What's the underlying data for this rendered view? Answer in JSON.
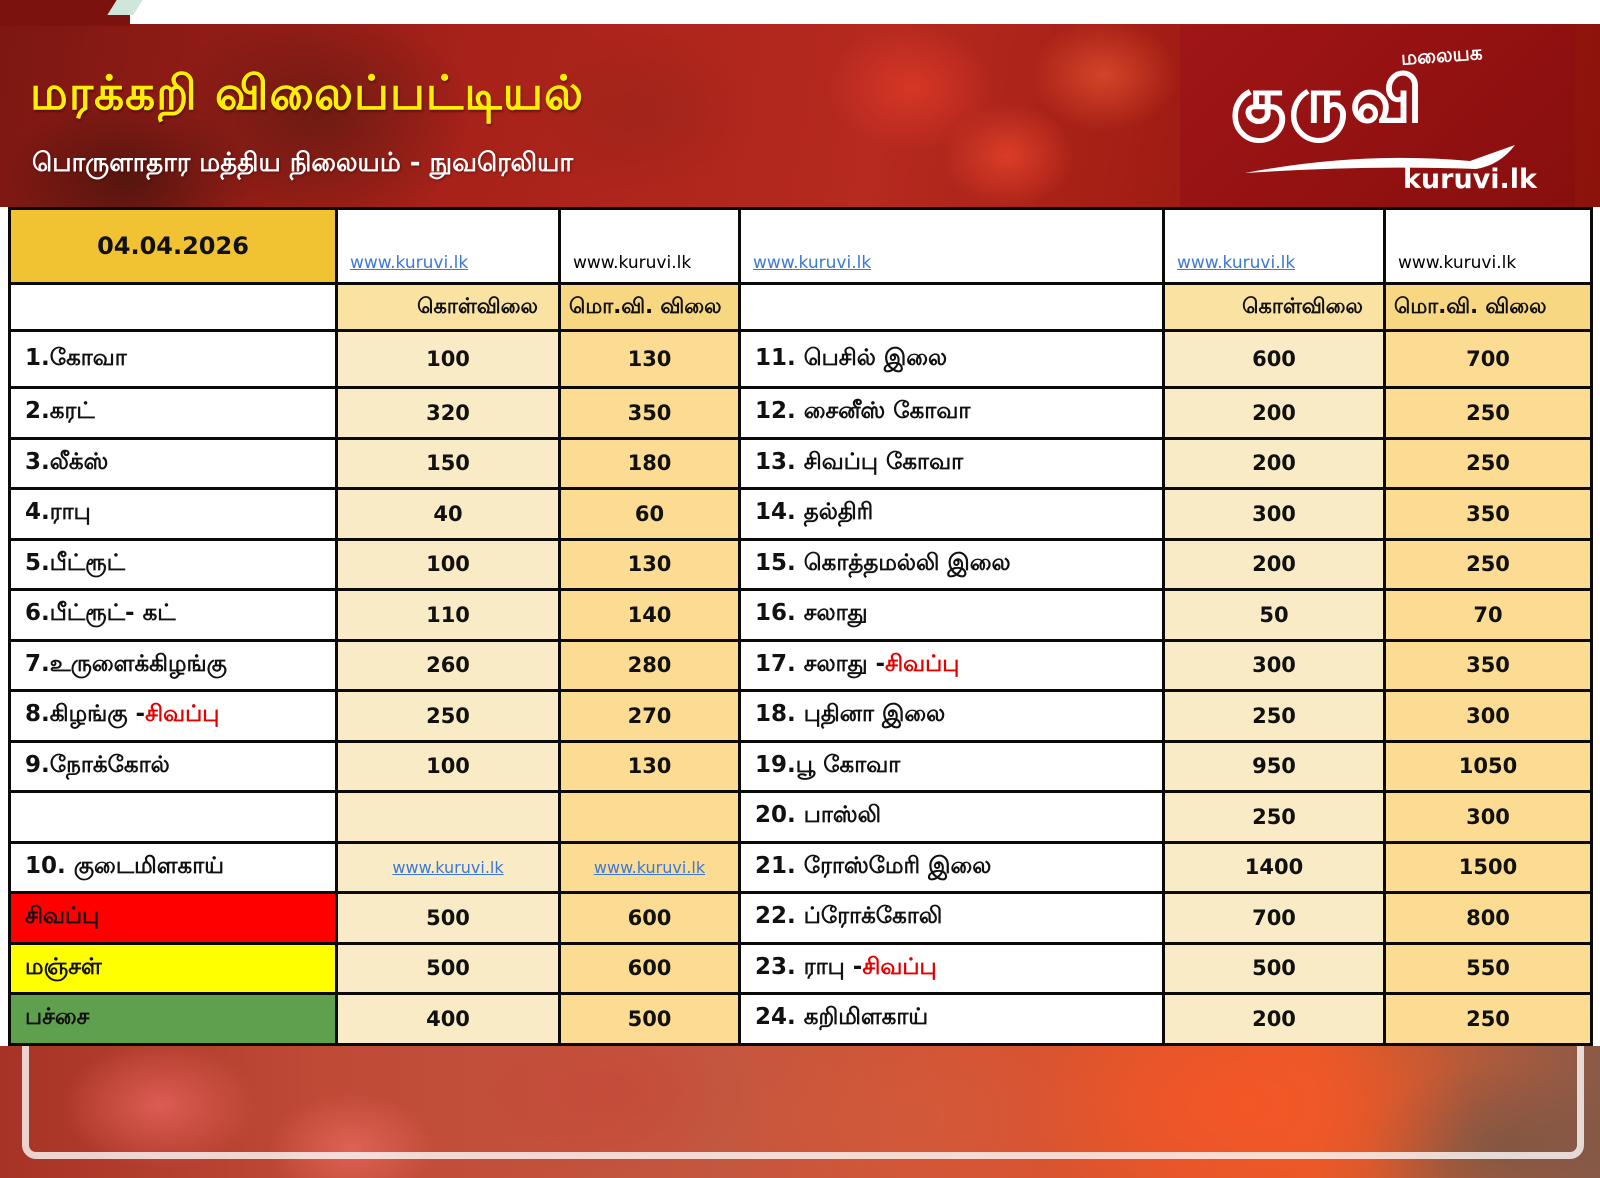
{
  "header": {
    "title": "மரக்கறி விலைப்பட்டியல்",
    "subtitle": "பொருளாதார மத்திய நிலையம் - நுவரெலியா",
    "logo": {
      "tagline": "மலையக",
      "brand": "குருவி",
      "site": "kuruvi.lk"
    }
  },
  "table": {
    "date": "04.04.2026",
    "link_label": "www.kuruvi.lk",
    "columns": {
      "buy": "கொள்விலை",
      "wholesale": "மொ.வி. விலை"
    },
    "rows": [
      {
        "left": {
          "name": "1.கோவா",
          "buy": "100",
          "ws": "130"
        },
        "right": {
          "name": "11. பெசில் இலை",
          "buy": "600",
          "ws": "700"
        }
      },
      {
        "left": {
          "name": "2.கரட்",
          "buy": "320",
          "ws": "350"
        },
        "right": {
          "name": "12. சைனீஸ் கோவா",
          "buy": "200",
          "ws": "250"
        }
      },
      {
        "left": {
          "name": "3.லீக்ஸ்",
          "buy": "150",
          "ws": "180"
        },
        "right": {
          "name": "13. சிவப்பு கோவா",
          "buy": "200",
          "ws": "250"
        }
      },
      {
        "left": {
          "name": "4.ராபு",
          "buy": "40",
          "ws": "60"
        },
        "right": {
          "name": "14. தல்திரி",
          "buy": "300",
          "ws": "350"
        }
      },
      {
        "left": {
          "name": "5.பீட்ரூட்",
          "buy": "100",
          "ws": "130"
        },
        "right": {
          "name": "15. கொத்தமல்லி இலை",
          "buy": "200",
          "ws": "250"
        }
      },
      {
        "left": {
          "name": "6.பீட்ரூட்- கட்",
          "buy": "110",
          "ws": "140"
        },
        "right": {
          "name": "16. சலாது",
          "buy": "50",
          "ws": "70"
        }
      },
      {
        "left": {
          "name": "7.உருளைக்கிழங்கு",
          "buy": "260",
          "ws": "280"
        },
        "right": {
          "name": "17. சலாது - ",
          "red": "சிவப்பு",
          "buy": "300",
          "ws": "350"
        }
      },
      {
        "left": {
          "name": "8.கிழங்கு - ",
          "red": "சிவப்பு",
          "buy": "250",
          "ws": "270"
        },
        "right": {
          "name": "18. புதினா இலை",
          "buy": "250",
          "ws": "300"
        }
      },
      {
        "left": {
          "name": "9.நோக்கோல்",
          "buy": "100",
          "ws": "130"
        },
        "right": {
          "name": "19.பூ கோவா",
          "buy": "950",
          "ws": "1050"
        }
      },
      {
        "left": {
          "name": "",
          "buy": "",
          "ws": ""
        },
        "right": {
          "name": "20. பாஸ்லி",
          "buy": "250",
          "ws": "300"
        }
      },
      {
        "left": {
          "name": "10. குடைமிளகாய்",
          "link": true
        },
        "right": {
          "name": "21. ரோஸ்மேரி இலை",
          "buy": "1400",
          "ws": "1500"
        }
      },
      {
        "left": {
          "name": "சிவப்பு",
          "bg": "red",
          "buy": "500",
          "ws": "600"
        },
        "right": {
          "name": "22. ப்ரோக்கோலி",
          "buy": "700",
          "ws": "800"
        }
      },
      {
        "left": {
          "name": "மஞ்சள்",
          "bg": "yellow",
          "buy": "500",
          "ws": "600"
        },
        "right": {
          "name": "23. ராபு - ",
          "red": "சிவப்பு",
          "buy": "500",
          "ws": "550"
        }
      },
      {
        "left": {
          "name": "பச்சை",
          "bg": "green",
          "buy": "400",
          "ws": "500"
        },
        "right": {
          "name": "24. கறிமிளகாய்",
          "buy": "200",
          "ws": "250"
        }
      }
    ]
  },
  "colors": {
    "date_cell": "#f1c232",
    "buy_column": "#f9ebc5",
    "wholesale_column": "#fbdc92",
    "buy_header": "#fae2a2",
    "wholesale_header": "#f8d782",
    "row_red": "#fe0000",
    "row_yellow": "#ffff00",
    "row_green": "#5fa04e",
    "link_blue": "#3c78d8",
    "red_text": "#e50000",
    "title_yellow": "#ffef00",
    "logo_red": "#931111"
  }
}
